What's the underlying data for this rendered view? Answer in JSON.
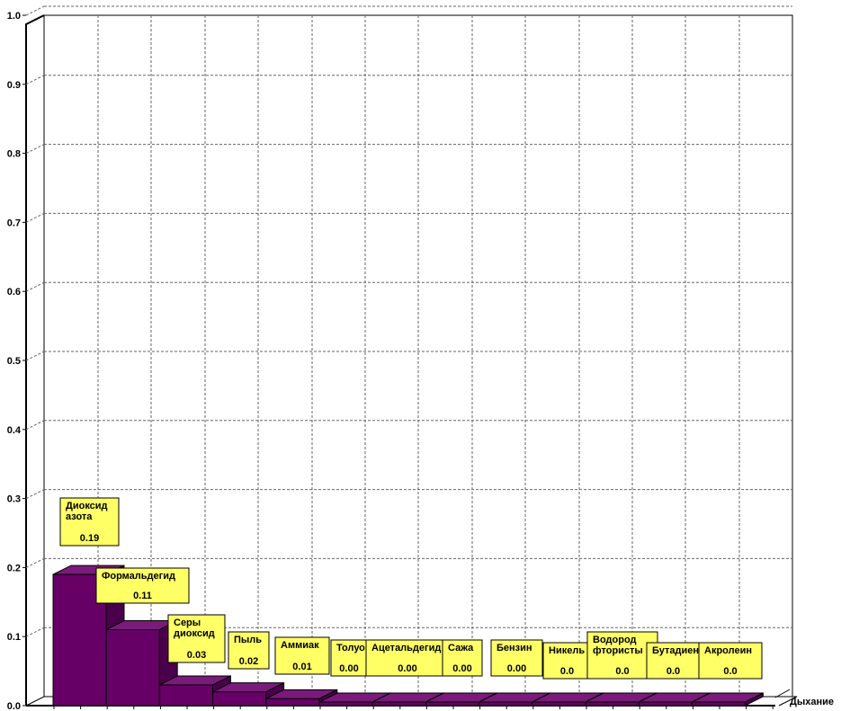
{
  "chart_data": {
    "type": "bar",
    "style": "3d",
    "categories": [
      [
        "Диоксид",
        "азота"
      ],
      [
        "Формальдегид"
      ],
      [
        "Серы",
        "диоксид"
      ],
      [
        "Пыль"
      ],
      [
        "Аммиак"
      ],
      [
        "Толуо"
      ],
      [
        "Ацетальдегид"
      ],
      [
        "Сажа"
      ],
      [
        "Бензин"
      ],
      [
        "Никель"
      ],
      [
        "Водород",
        "фтористы"
      ],
      [
        "Бутадиен"
      ],
      [
        "Акролеин"
      ]
    ],
    "series": [
      {
        "name": "Дыхание",
        "values": [
          0.19,
          0.11,
          0.03,
          0.02,
          0.01,
          0.0,
          0.0,
          0.0,
          0.0,
          0.0,
          0.0,
          0.0,
          0.0
        ],
        "value_labels": [
          "0.19",
          "0.11",
          "0.03",
          "0.02",
          "0.01",
          "0.00",
          "0.00",
          "0.00",
          "0.00",
          "0.0",
          "0.0",
          "0.0",
          "0.0"
        ]
      }
    ],
    "ylim": [
      0,
      1.0
    ],
    "yticks": [
      "0.0",
      "0.1",
      "0.2",
      "0.3",
      "0.4",
      "0.5",
      "0.6",
      "0.7",
      "0.8",
      "0.9",
      "1.0"
    ],
    "grid": true,
    "colors": {
      "bar": "#660066",
      "label_bg": "#ffff66"
    }
  }
}
